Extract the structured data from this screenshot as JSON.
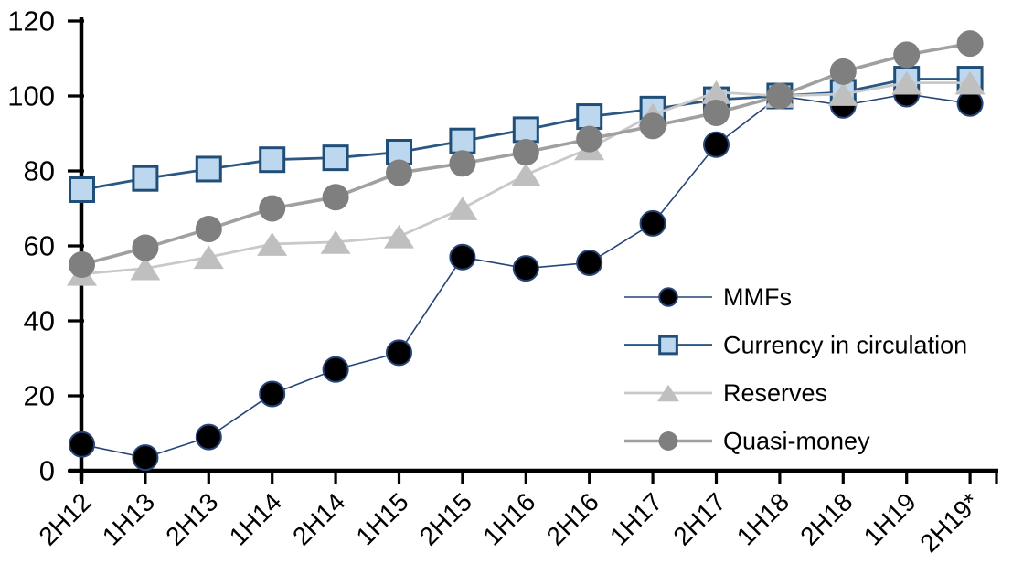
{
  "chart_data": {
    "type": "line",
    "title": "",
    "xlabel": "",
    "ylabel": "",
    "grid": false,
    "background": "#FFFFFF",
    "axis_color": "#000000",
    "ylim": [
      0,
      120
    ],
    "ytick_step": 20,
    "ytick_labels": [
      "0",
      "20",
      "40",
      "60",
      "80",
      "100",
      "120"
    ],
    "categories": [
      "2H12",
      "1H13",
      "2H13",
      "1H14",
      "2H14",
      "1H15",
      "2H15",
      "1H16",
      "2H16",
      "1H17",
      "2H17",
      "1H18",
      "2H18",
      "1H19",
      "2H19*"
    ],
    "legend_position": "inside-right",
    "series": [
      {
        "id": "mmfs",
        "name": "MMFs",
        "marker": "circle",
        "values": [
          7,
          3.5,
          9,
          20.5,
          27,
          31.5,
          57,
          54,
          55.5,
          66,
          87,
          100,
          97.5,
          100.5,
          98
        ],
        "line_color": "#264478",
        "line_width": 1.6,
        "marker_fill": "#000000",
        "marker_stroke": "#264478",
        "marker_stroke_width": 2,
        "marker_size": 27
      },
      {
        "id": "currency",
        "name": "Currency in circulation",
        "marker": "square",
        "values": [
          75,
          78,
          80.5,
          83,
          83.5,
          85,
          88,
          91,
          94.5,
          96.5,
          99,
          100,
          101,
          104.5,
          104.5
        ],
        "line_color": "#2A5783",
        "line_width": 2.8,
        "marker_fill": "#BDD7EE",
        "marker_stroke": "#1F4E79",
        "marker_stroke_width": 3,
        "marker_size": 26
      },
      {
        "id": "reserves",
        "name": "Reserves",
        "marker": "triangle",
        "values": [
          52.5,
          54,
          57,
          60.5,
          61,
          62.5,
          70,
          79,
          86,
          95,
          101,
          100,
          100.5,
          103.5,
          103.5
        ],
        "line_color": "#C9C9C9",
        "line_width": 2.8,
        "marker_fill": "#BFBFBF",
        "marker_stroke": "none",
        "marker_stroke_width": 0,
        "marker_size": 33
      },
      {
        "id": "quasi",
        "name": "Quasi-money",
        "marker": "circle",
        "values": [
          55,
          59.5,
          64.5,
          70,
          73,
          79.5,
          82,
          85,
          88.5,
          92,
          95.5,
          100,
          106.5,
          111,
          114
        ],
        "line_color": "#A0A0A0",
        "line_width": 3.6,
        "marker_fill": "#7F7F7F",
        "marker_stroke": "none",
        "marker_stroke_width": 0,
        "marker_size": 29
      }
    ]
  }
}
